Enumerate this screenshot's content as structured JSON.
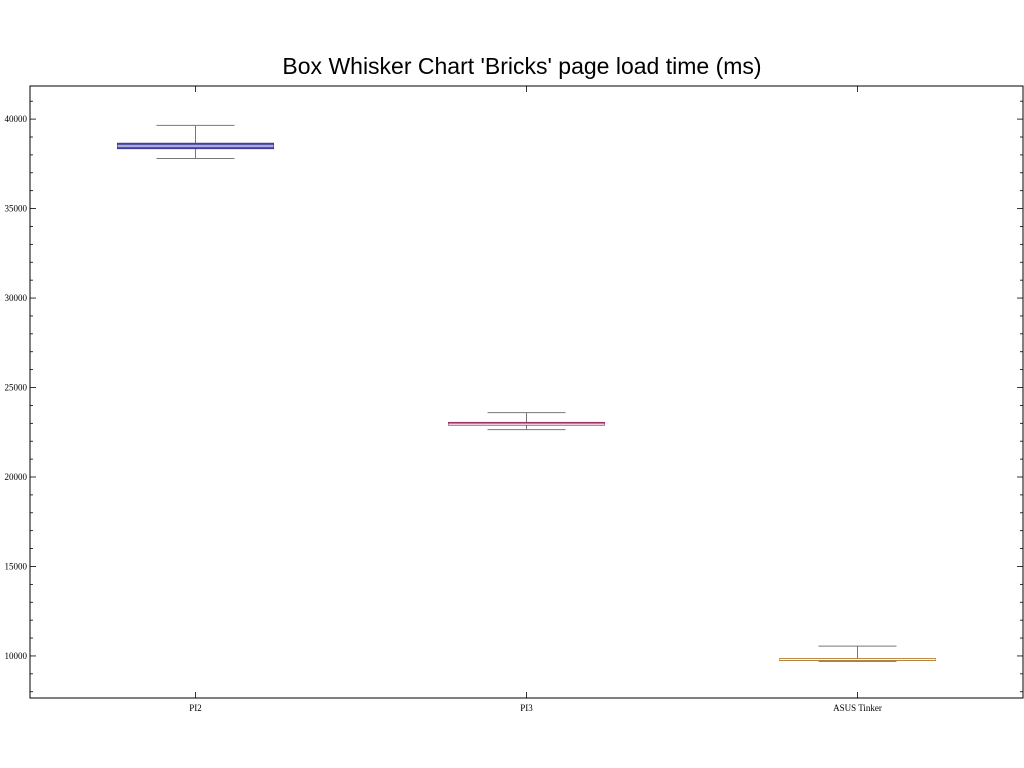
{
  "chart_data": {
    "type": "box",
    "title": "Box Whisker Chart 'Bricks' page load time (ms)",
    "xlabel": "",
    "ylabel": "",
    "ylim": [
      7650,
      41850
    ],
    "yticks": [
      10000,
      15000,
      20000,
      25000,
      30000,
      35000,
      40000
    ],
    "ytick_labels": [
      "10000",
      "15000",
      "20000",
      "25000",
      "30000",
      "35000",
      "40000"
    ],
    "grid": false,
    "categories": [
      "PI2",
      "PI3",
      "ASUS Tinker"
    ],
    "boxes": [
      {
        "category": "PI2",
        "min": 37800,
        "q1": 38350,
        "median": 38500,
        "q3": 38650,
        "max": 39650,
        "color": "#3b3b9b"
      },
      {
        "category": "PI3",
        "min": 22650,
        "q1": 22900,
        "median": 22950,
        "q3": 23050,
        "max": 23600,
        "color": "#a0306a"
      },
      {
        "category": "ASUS Tinker",
        "min": 9700,
        "q1": 9750,
        "median": 9800,
        "q3": 9850,
        "max": 10550,
        "color": "#b07a30"
      }
    ],
    "whisker_color": "#777777",
    "frame_color": "#000000"
  }
}
